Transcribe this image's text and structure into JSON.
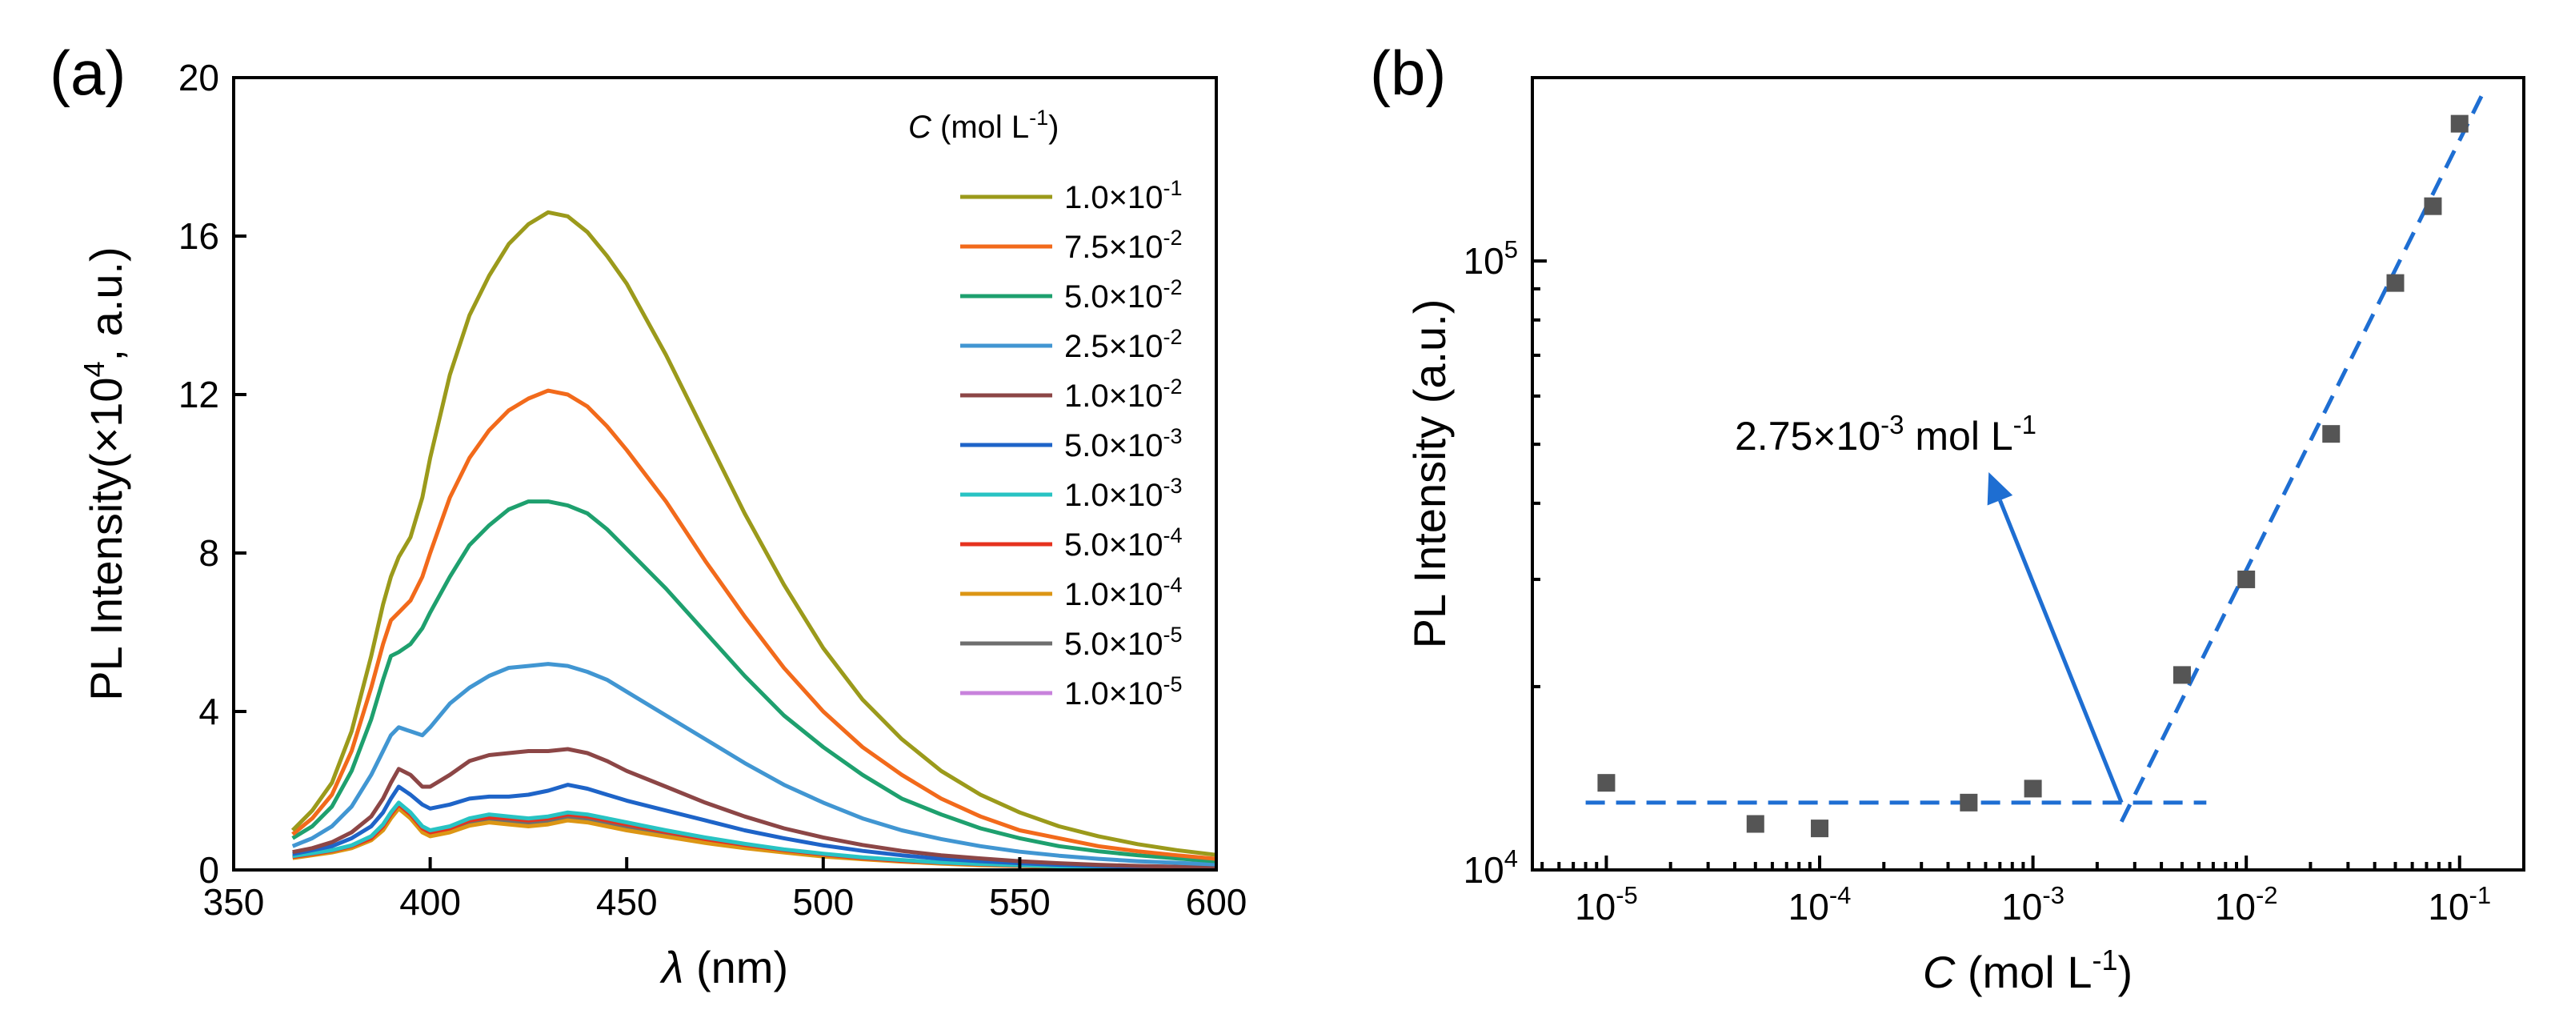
{
  "figure": {
    "panel_a_label": "(a)",
    "panel_b_label": "(b)"
  },
  "colors": {
    "axis": "#000000",
    "fit_line": "#1e6ed2",
    "points": "#555555",
    "arrow": "#1e6ed2"
  },
  "chart_data": [
    {
      "type": "line",
      "panel": "(a)",
      "xlabel": {
        "symbol": "λ",
        "rest": " (nm)"
      },
      "ylabel": {
        "main": "PL Intensity(×10",
        "sup": "4",
        "tail": ", a.u.)"
      },
      "xlim": [
        350,
        600
      ],
      "ylim": [
        0,
        20
      ],
      "x_ticks": [
        350,
        400,
        450,
        500,
        550,
        600
      ],
      "y_ticks": [
        0,
        4,
        8,
        12,
        16,
        20
      ],
      "legend": {
        "title_symbol": "C",
        "title_unit": " (mol L",
        "title_sup": "-1",
        "title_close": ")",
        "position": "top-right"
      },
      "x": [
        365,
        370,
        375,
        380,
        385,
        388,
        390,
        392,
        395,
        398,
        400,
        405,
        410,
        415,
        420,
        425,
        430,
        435,
        440,
        445,
        450,
        460,
        470,
        480,
        490,
        500,
        510,
        520,
        530,
        540,
        550,
        560,
        570,
        580,
        590,
        600
      ],
      "series": [
        {
          "name": "1.0×10-1",
          "mant": "1.0",
          "exp": "-1",
          "color": "#9b9a1b",
          "values": [
            1.0,
            1.5,
            2.2,
            3.5,
            5.4,
            6.7,
            7.4,
            7.9,
            8.4,
            9.4,
            10.4,
            12.5,
            14.0,
            15.0,
            15.8,
            16.3,
            16.6,
            16.5,
            16.1,
            15.5,
            14.8,
            13.0,
            11.0,
            9.0,
            7.2,
            5.6,
            4.3,
            3.3,
            2.5,
            1.9,
            1.45,
            1.1,
            0.85,
            0.65,
            0.5,
            0.38
          ]
        },
        {
          "name": "7.5×10-2",
          "mant": "7.5",
          "exp": "-2",
          "color": "#f26a1b",
          "values": [
            0.9,
            1.3,
            1.9,
            3.0,
            4.6,
            5.7,
            6.3,
            6.5,
            6.8,
            7.4,
            8.0,
            9.4,
            10.4,
            11.1,
            11.6,
            11.9,
            12.1,
            12.0,
            11.7,
            11.2,
            10.6,
            9.3,
            7.8,
            6.4,
            5.1,
            4.0,
            3.1,
            2.4,
            1.8,
            1.35,
            1.0,
            0.8,
            0.6,
            0.47,
            0.37,
            0.28
          ]
        },
        {
          "name": "5.0×10-2",
          "mant": "5.0",
          "exp": "-2",
          "color": "#1ea06e",
          "values": [
            0.8,
            1.1,
            1.6,
            2.5,
            3.8,
            4.8,
            5.4,
            5.5,
            5.7,
            6.1,
            6.5,
            7.4,
            8.2,
            8.7,
            9.1,
            9.3,
            9.3,
            9.2,
            9.0,
            8.6,
            8.1,
            7.1,
            6.0,
            4.9,
            3.9,
            3.1,
            2.4,
            1.8,
            1.4,
            1.05,
            0.8,
            0.6,
            0.47,
            0.37,
            0.29,
            0.22
          ]
        },
        {
          "name": "2.5×10-2",
          "mant": "2.5",
          "exp": "-2",
          "color": "#4196d2",
          "values": [
            0.6,
            0.8,
            1.1,
            1.6,
            2.4,
            3.0,
            3.4,
            3.6,
            3.5,
            3.4,
            3.6,
            4.2,
            4.6,
            4.9,
            5.1,
            5.15,
            5.2,
            5.15,
            5.0,
            4.8,
            4.5,
            3.9,
            3.3,
            2.7,
            2.15,
            1.7,
            1.3,
            1.0,
            0.78,
            0.6,
            0.46,
            0.36,
            0.28,
            0.22,
            0.18,
            0.14
          ]
        },
        {
          "name": "1.0×10-2",
          "mant": "1.0",
          "exp": "-2",
          "color": "#8c4646",
          "values": [
            0.45,
            0.55,
            0.7,
            0.95,
            1.35,
            1.8,
            2.2,
            2.55,
            2.4,
            2.1,
            2.1,
            2.4,
            2.75,
            2.9,
            2.95,
            3.0,
            3.0,
            3.05,
            2.95,
            2.75,
            2.5,
            2.1,
            1.7,
            1.35,
            1.05,
            0.82,
            0.63,
            0.48,
            0.37,
            0.29,
            0.22,
            0.17,
            0.13,
            0.1,
            0.08,
            0.06
          ]
        },
        {
          "name": "5.0×10-3",
          "mant": "5.0",
          "exp": "-3",
          "color": "#1e64c8",
          "values": [
            0.4,
            0.5,
            0.6,
            0.8,
            1.1,
            1.45,
            1.8,
            2.1,
            1.9,
            1.65,
            1.55,
            1.65,
            1.8,
            1.85,
            1.85,
            1.9,
            2.0,
            2.15,
            2.05,
            1.9,
            1.75,
            1.5,
            1.25,
            1.0,
            0.8,
            0.62,
            0.48,
            0.37,
            0.28,
            0.22,
            0.17,
            0.13,
            0.1,
            0.08,
            0.06,
            0.05
          ]
        },
        {
          "name": "1.0×10-3",
          "mant": "1.0",
          "exp": "-3",
          "color": "#28c3c3",
          "values": [
            0.35,
            0.42,
            0.5,
            0.62,
            0.85,
            1.15,
            1.45,
            1.7,
            1.45,
            1.1,
            1.0,
            1.1,
            1.3,
            1.4,
            1.35,
            1.3,
            1.35,
            1.45,
            1.4,
            1.3,
            1.2,
            1.0,
            0.82,
            0.66,
            0.52,
            0.41,
            0.32,
            0.25,
            0.19,
            0.15,
            0.12,
            0.09,
            0.07,
            0.06,
            0.05,
            0.04
          ]
        },
        {
          "name": "5.0×10-4",
          "mant": "5.0",
          "exp": "-4",
          "color": "#e6321e",
          "values": [
            0.33,
            0.4,
            0.48,
            0.6,
            0.8,
            1.1,
            1.4,
            1.65,
            1.4,
            1.05,
            0.95,
            1.05,
            1.25,
            1.33,
            1.3,
            1.25,
            1.3,
            1.4,
            1.35,
            1.25,
            1.15,
            0.96,
            0.78,
            0.63,
            0.5,
            0.39,
            0.3,
            0.23,
            0.18,
            0.14,
            0.11,
            0.09,
            0.07,
            0.05,
            0.04,
            0.03
          ]
        },
        {
          "name": "1.0×10-4",
          "mant": "1.0",
          "exp": "-4",
          "color": "#dc9614",
          "values": [
            0.3,
            0.37,
            0.44,
            0.55,
            0.75,
            1.0,
            1.3,
            1.55,
            1.3,
            0.95,
            0.85,
            0.95,
            1.12,
            1.2,
            1.15,
            1.1,
            1.15,
            1.25,
            1.2,
            1.1,
            1.0,
            0.84,
            0.68,
            0.55,
            0.44,
            0.34,
            0.27,
            0.21,
            0.16,
            0.12,
            0.1,
            0.08,
            0.06,
            0.05,
            0.04,
            0.03
          ]
        },
        {
          "name": "5.0×10-5",
          "mant": "5.0",
          "exp": "-5",
          "color": "#6e6e6e",
          "values": [
            0.32,
            0.39,
            0.47,
            0.58,
            0.78,
            1.05,
            1.35,
            1.6,
            1.35,
            1.0,
            0.9,
            1.0,
            1.18,
            1.26,
            1.22,
            1.18,
            1.22,
            1.32,
            1.28,
            1.18,
            1.08,
            0.9,
            0.73,
            0.59,
            0.47,
            0.37,
            0.29,
            0.22,
            0.17,
            0.13,
            0.1,
            0.08,
            0.06,
            0.05,
            0.04,
            0.03
          ]
        },
        {
          "name": "1.0×10-5",
          "mant": "1.0",
          "exp": "-5",
          "color": "#c882dc",
          "values": [
            0.34,
            0.41,
            0.49,
            0.61,
            0.82,
            1.1,
            1.42,
            1.67,
            1.42,
            1.06,
            0.96,
            1.06,
            1.25,
            1.33,
            1.29,
            1.24,
            1.29,
            1.39,
            1.34,
            1.24,
            1.13,
            0.95,
            0.77,
            0.62,
            0.49,
            0.39,
            0.3,
            0.23,
            0.18,
            0.14,
            0.11,
            0.08,
            0.06,
            0.05,
            0.04,
            0.03
          ]
        }
      ]
    },
    {
      "type": "scatter",
      "panel": "(b)",
      "xscale": "log",
      "yscale": "log",
      "xlabel": {
        "symbol": "C",
        "unit": " (mol L",
        "sup": "-1",
        "close": ")"
      },
      "ylabel": "PL Intensity (a.u.)",
      "xlim": [
        4.5e-06,
        0.2
      ],
      "ylim": [
        10000,
        200000
      ],
      "x_ticks": [
        {
          "v": 1e-05,
          "exp": "-5"
        },
        {
          "v": 0.0001,
          "exp": "-4"
        },
        {
          "v": 0.001,
          "exp": "-3"
        },
        {
          "v": 0.01,
          "exp": "-2"
        },
        {
          "v": 0.1,
          "exp": "-1"
        }
      ],
      "y_ticks": [
        {
          "v": 10000,
          "exp": "4"
        },
        {
          "v": 100000,
          "exp": "5"
        }
      ],
      "x": [
        1e-05,
        5e-05,
        0.0001,
        0.0005,
        0.001,
        0.005,
        0.01,
        0.025,
        0.05,
        0.075,
        0.1
      ],
      "values": [
        13900,
        11900,
        11700,
        12900,
        13600,
        20900,
        30000,
        52000,
        92000,
        123000,
        168000
      ],
      "fit_lines": [
        {
          "name": "baseline",
          "x": [
            8e-06,
            0.0065
          ],
          "y": [
            12900,
            12900
          ]
        },
        {
          "name": "rise",
          "x": [
            0.0026,
            0.13
          ],
          "y": [
            12000,
            190000
          ]
        }
      ],
      "annotation": {
        "mant": "2.75×10",
        "exp": "-3",
        "unit": " mol L",
        "unit_sup": "-1",
        "arrow_from": [
          0.0026,
          12900
        ],
        "arrow_to": [
          0.00062,
          45000
        ]
      }
    }
  ]
}
